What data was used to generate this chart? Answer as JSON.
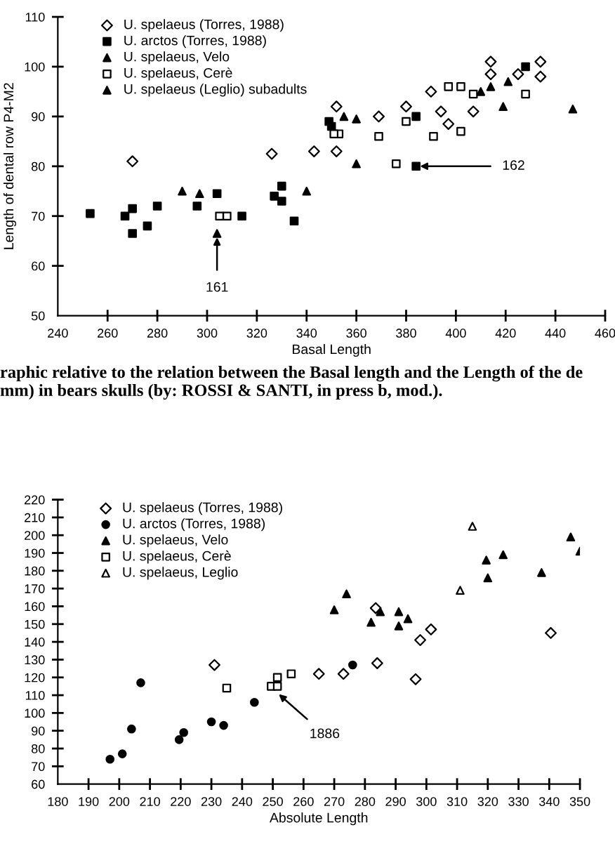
{
  "chart_data": [
    {
      "type": "scatter",
      "xlabel": "Basal Length",
      "ylabel": "Length of dental row P4-M2",
      "xlim": [
        240,
        460
      ],
      "ylim": [
        50,
        110
      ],
      "xticks": [
        240,
        260,
        280,
        300,
        320,
        340,
        360,
        380,
        400,
        420,
        440,
        460
      ],
      "yticks": [
        50,
        60,
        70,
        80,
        90,
        100,
        110
      ],
      "grid": false,
      "legend": "top left",
      "series": [
        {
          "name": "U. spelaeus (Torres, 1988)",
          "color": "#ffffff",
          "marker": "diamond",
          "x": [
            343,
            326,
            270,
            352,
            352,
            369,
            380,
            394,
            407,
            414,
            414,
            425,
            434,
            434,
            390,
            397
          ],
          "values": [
            83,
            82.5,
            81,
            92,
            83,
            90,
            92,
            91,
            91,
            101,
            98.5,
            98.5,
            101,
            98,
            95,
            88.5
          ]
        },
        {
          "name": "U. arctos (Torres, 1988)",
          "color": "#000000",
          "marker": "square",
          "x": [
            253,
            267,
            270,
            270,
            276,
            280,
            296,
            304,
            314,
            327,
            330,
            330,
            335,
            349,
            350,
            384,
            428,
            384
          ],
          "values": [
            70.5,
            70,
            71.5,
            66.5,
            68,
            72,
            72,
            74.5,
            70,
            74,
            76,
            73,
            69,
            89,
            88,
            90,
            100,
            80
          ]
        },
        {
          "name": "U. spelaeus, Velo",
          "color": "#000000",
          "marker": "triangle",
          "x": [
            290,
            297,
            304,
            340,
            355,
            360,
            360,
            410,
            414,
            421
          ],
          "values": [
            75,
            74.5,
            66.5,
            75,
            90,
            89.5,
            80.5,
            95,
            96,
            97
          ]
        },
        {
          "name": "U. spelaeus, Cerè",
          "color": "#ffffff",
          "marker": "square",
          "x": [
            305,
            308,
            353,
            351,
            369,
            376,
            380,
            391,
            397,
            402,
            402,
            407,
            428
          ],
          "values": [
            70,
            70,
            86.5,
            86.5,
            86,
            80.5,
            89,
            86,
            96,
            96,
            87,
            94.5,
            94.5
          ]
        },
        {
          "name": "U. spelaeus (Leglio) subadults",
          "color": "#000000",
          "marker": "triangle",
          "x": [
            419,
            447
          ],
          "values": [
            92,
            91.5
          ]
        }
      ],
      "annotations": [
        {
          "text": "161",
          "x": 304,
          "y": 66.5
        },
        {
          "text": "162",
          "x": 384,
          "y": 80
        },
        "raphic relative to the relation between the Basal length and the Length of the de",
        "mm) in bears skulls (by: ROSSI & SANTI, in press b, mod.)."
      ]
    },
    {
      "type": "scatter",
      "xlabel": "Absolute Length",
      "xlim": [
        180,
        350
      ],
      "ylim": [
        60,
        220
      ],
      "xticks": [
        180,
        190,
        200,
        210,
        220,
        230,
        240,
        250,
        260,
        270,
        280,
        290,
        300,
        310,
        320,
        330,
        340,
        350
      ],
      "yticks": [
        60,
        70,
        80,
        90,
        100,
        110,
        120,
        130,
        140,
        150,
        160,
        170,
        180,
        190,
        200,
        210,
        220
      ],
      "grid": false,
      "legend": "top left",
      "series": [
        {
          "name": "U. spelaeus (Torres, 1988)",
          "color": "#ffffff",
          "marker": "diamond",
          "x": [
            283.5,
            298,
            301.5,
            340.5,
            231,
            265,
            273,
            296.5,
            284
          ],
          "values": [
            159,
            141,
            147,
            145,
            127,
            122,
            122,
            119,
            128
          ]
        },
        {
          "name": "U. arctos (Torres, 1988)",
          "color": "#000000",
          "marker": "circle",
          "x": [
            197,
            201,
            204,
            207,
            219.5,
            221,
            230,
            234,
            244,
            276
          ],
          "values": [
            74,
            77,
            91,
            117,
            85,
            89,
            95,
            93,
            106,
            127
          ]
        },
        {
          "name": "U. spelaeus, Velo",
          "color": "#000000",
          "marker": "triangle",
          "x": [
            270,
            274,
            282,
            285,
            291,
            291,
            294,
            319.5,
            320,
            325,
            337.5,
            347,
            350
          ],
          "values": [
            158,
            167,
            151,
            157,
            157,
            149,
            153,
            186,
            176,
            189,
            179,
            199,
            191
          ]
        },
        {
          "name": "U. spelaeus, Cerè",
          "color": "#ffffff",
          "marker": "square",
          "x": [
            249.5,
            251.5,
            251.5,
            256,
            235
          ],
          "values": [
            115,
            120,
            115,
            122,
            114
          ]
        },
        {
          "name": "U. spelaeus, Leglio",
          "color": "#ffffff",
          "marker": "triangle",
          "x": [
            315,
            311
          ],
          "values": [
            205,
            169
          ]
        }
      ],
      "annotations": [
        {
          "text": "1886",
          "x": 251,
          "y": 112
        }
      ]
    }
  ]
}
